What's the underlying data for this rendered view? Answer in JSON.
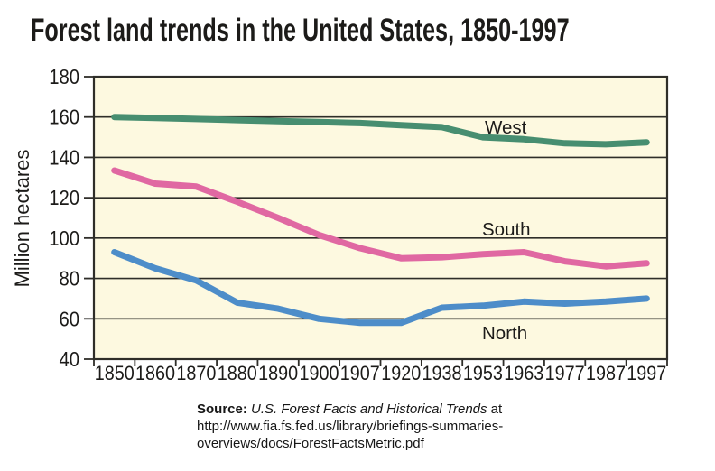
{
  "title": "Forest land trends in the United States, 1850-1997",
  "chart_data": {
    "type": "line",
    "title": "Forest land trends in the United States, 1850-1997",
    "xlabel": "",
    "ylabel": "Million hectares",
    "ylim": [
      40,
      180
    ],
    "ytick_step": 20,
    "ytick_labels": [
      "40",
      "60",
      "80",
      "100",
      "120",
      "140",
      "160",
      "180"
    ],
    "grid": true,
    "legend_position": "inline-labels",
    "plot_bg_color": "#FDF9E0",
    "grid_color": "#2F2E29",
    "categories": [
      "1850",
      "1860",
      "1870",
      "1880",
      "1890",
      "1900",
      "1907",
      "1920",
      "1938",
      "1953",
      "1963",
      "1977",
      "1987",
      "1997"
    ],
    "series": [
      {
        "name": "West",
        "color": "#478E70",
        "values": [
          160,
          159.5,
          159,
          158.5,
          158,
          157.5,
          157,
          156,
          155,
          150,
          149,
          147,
          146.5,
          147.5
        ]
      },
      {
        "name": "South",
        "color": "#E068A2",
        "values": [
          133.5,
          127,
          125.5,
          118,
          110,
          101.5,
          95,
          90,
          90.5,
          92,
          93,
          88.5,
          86,
          87.5
        ]
      },
      {
        "name": "North",
        "color": "#4D8DC9",
        "values": [
          93,
          85,
          79,
          68,
          65,
          60,
          58,
          58,
          65.5,
          66.5,
          68.5,
          67.5,
          68.5,
          70
        ]
      }
    ]
  },
  "source": {
    "label": "Source:",
    "work": "U.S. Forest Facts and Historical Trends",
    "connector": "at",
    "url_line1": "http://www.fia.fs.fed.us/library/briefings-summaries-",
    "url_line2": "overviews/docs/ForestFactsMetric.pdf"
  },
  "colors": {
    "text": "#1C1B19",
    "axis": "#2F2E29",
    "plot_background": "#FDF9E0",
    "page_background": "#FFFFFF"
  }
}
